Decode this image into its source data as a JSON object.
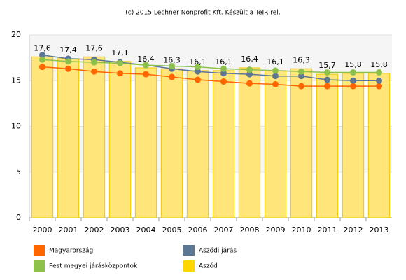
{
  "chart_data": {
    "type": "bar",
    "title": "(c) 2015 Lechner Nonprofit Kft. Készült a TeIR-rel.",
    "categories": [
      "2000",
      "2001",
      "2002",
      "2003",
      "2004",
      "2005",
      "2006",
      "2007",
      "2008",
      "2009",
      "2010",
      "2011",
      "2012",
      "2013"
    ],
    "series": [
      {
        "name": "Aszód",
        "type": "bar",
        "color": "#ffe57a",
        "values": [
          17.6,
          17.4,
          17.6,
          17.1,
          16.4,
          16.3,
          16.1,
          16.1,
          16.4,
          16.1,
          16.3,
          15.7,
          15.8,
          15.8
        ],
        "value_labels": [
          "17,6",
          "17,4",
          "17,6",
          "17,1",
          "16,4",
          "16,3",
          "16,1",
          "16,1",
          "16,4",
          "16,1",
          "16,3",
          "15,7",
          "15,8",
          "15,8"
        ]
      },
      {
        "name": "Magyarország",
        "type": "line",
        "color": "#ff6600",
        "values": [
          16.5,
          16.3,
          16.0,
          15.8,
          15.7,
          15.4,
          15.1,
          14.9,
          14.7,
          14.6,
          14.4,
          14.4,
          14.4,
          14.4
        ]
      },
      {
        "name": "Aszódi járás",
        "type": "line",
        "color": "#5b7794",
        "values": [
          17.8,
          17.4,
          17.3,
          17.0,
          16.7,
          16.3,
          16.0,
          15.8,
          15.7,
          15.5,
          15.5,
          15.1,
          15.0,
          15.0
        ]
      },
      {
        "name": "Pest megyei járásközpontok",
        "type": "line",
        "color": "#8dc14b",
        "values": [
          17.3,
          17.1,
          17.0,
          16.9,
          16.7,
          16.6,
          16.5,
          16.3,
          16.2,
          16.1,
          16.0,
          15.9,
          15.9,
          15.9
        ]
      }
    ],
    "ylim": [
      0,
      20
    ],
    "yticks": [
      0,
      5,
      10,
      15,
      20
    ],
    "grid": true
  }
}
